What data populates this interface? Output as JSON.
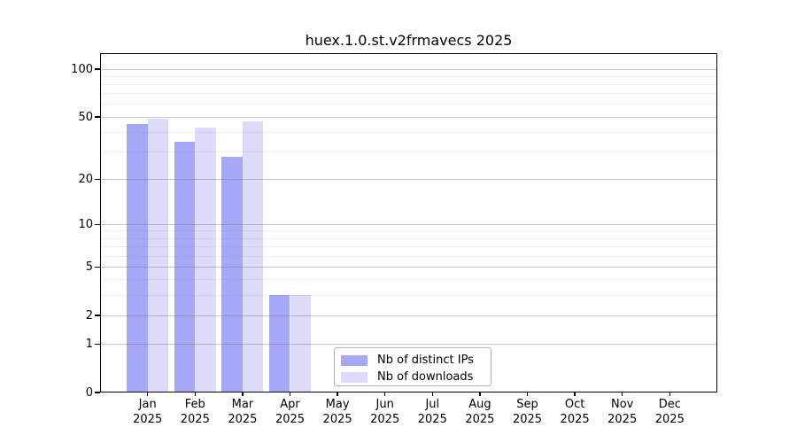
{
  "chart_data": {
    "type": "bar",
    "title": "huex.1.0.st.v2frmavecs 2025",
    "categories": [
      "Jan",
      "Feb",
      "Mar",
      "Apr",
      "May",
      "Jun",
      "Jul",
      "Aug",
      "Sep",
      "Oct",
      "Nov",
      "Dec"
    ],
    "year_label": "2025",
    "series": [
      {
        "name": "Nb of distinct IPs",
        "color": "#a7a7f7",
        "values": [
          45,
          35,
          28,
          3,
          null,
          null,
          null,
          null,
          null,
          null,
          null,
          null
        ]
      },
      {
        "name": "Nb of downloads",
        "color": "#dcdcfa",
        "values": [
          49,
          43,
          47,
          3,
          null,
          null,
          null,
          null,
          null,
          null,
          null,
          null
        ]
      }
    ],
    "xlabel": "",
    "ylabel": "",
    "scale": "log1p",
    "ylim": [
      0,
      126
    ],
    "y_major_ticks": [
      0,
      1,
      2,
      5,
      10,
      20,
      50,
      100
    ],
    "y_minor_gridlines": [
      3,
      4,
      6,
      7,
      8,
      9,
      30,
      40,
      60,
      70,
      80,
      90
    ],
    "grid": "on",
    "legend_position": "lower-center"
  }
}
